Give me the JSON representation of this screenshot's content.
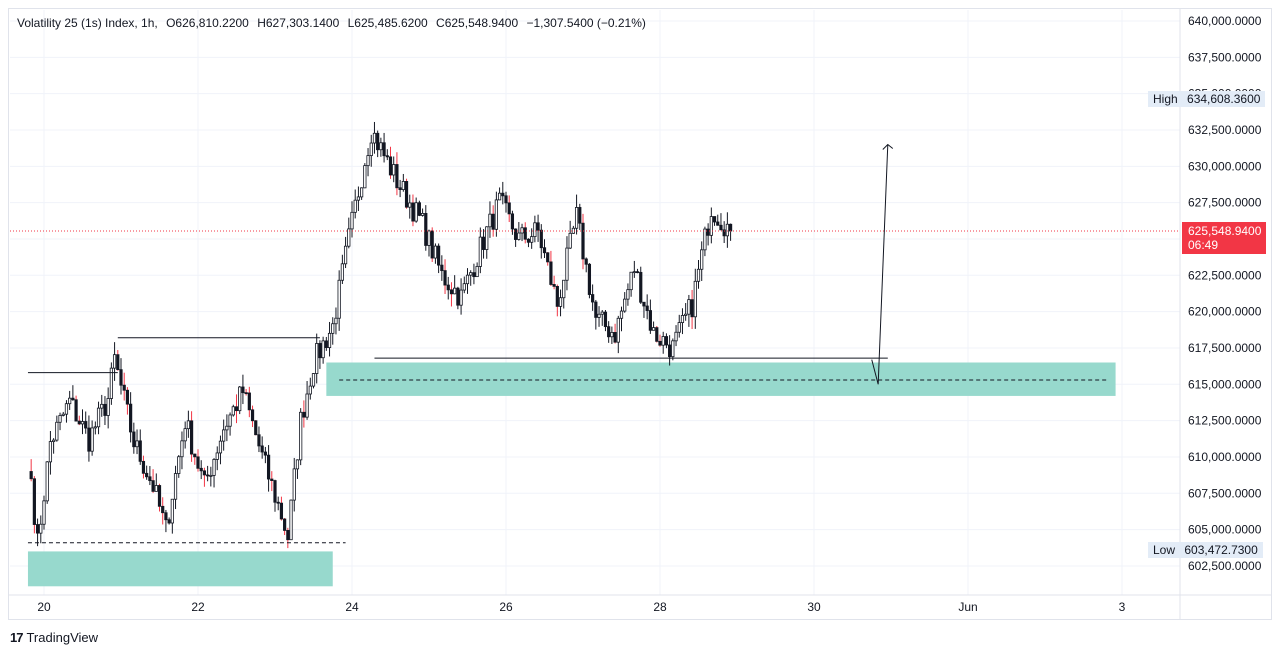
{
  "header": {
    "symbol": "Volatility 25 (1s) Index, 1h,",
    "open": "O626,810.2200",
    "high": "H627,303.1400",
    "low": "L625,485.6200",
    "close": "C625,548.9400",
    "change": "−1,307.5400 (−0.21%)"
  },
  "markers": {
    "high_label": "High",
    "high_value": "634,608.3600",
    "low_label": "Low",
    "low_value": "603,472.7300",
    "last_price": "625,548.9400",
    "countdown": "06:49"
  },
  "brand": {
    "name": "TradingView",
    "logo": "tradingview-logo-icon"
  },
  "colors": {
    "up": "#131722",
    "down": "#131722",
    "up_body": "#ffffff",
    "last_price": "#f23645",
    "zone_fill": "#97d9cd",
    "accent_wick": "#f23645"
  },
  "chart_data": {
    "type": "candlestick",
    "title": "Volatility 25 (1s) Index, 1h",
    "x_ticks": [
      "20",
      "22",
      "24",
      "26",
      "28",
      "30",
      "Jun",
      "3"
    ],
    "y_ticks": [
      "640,000.0000",
      "637,500.0000",
      "635,000.0000",
      "632,500.0000",
      "630,000.0000",
      "627,500.0000",
      "625,000.0000",
      "622,500.0000",
      "620,000.0000",
      "617,500.0000",
      "615,000.0000",
      "612,500.0000",
      "610,000.0000",
      "607,500.0000",
      "605,000.0000",
      "602,500.0000"
    ],
    "ylim": [
      601000,
      641000
    ],
    "x_range": [
      "May 19 19:00",
      "Jun 4 06:00"
    ],
    "anchor_closes": [
      {
        "t": "May 19 20:00",
        "v": 608500
      },
      {
        "t": "May 19 22:00",
        "v": 604000
      },
      {
        "t": "May 20 02:00",
        "v": 611000
      },
      {
        "t": "May 20 08:00",
        "v": 613800
      },
      {
        "t": "May 20 14:00",
        "v": 611200
      },
      {
        "t": "May 20 20:00",
        "v": 614000
      },
      {
        "t": "May 20 22:00",
        "v": 616700
      },
      {
        "t": "May 21 04:00",
        "v": 611000
      },
      {
        "t": "May 21 10:00",
        "v": 608000
      },
      {
        "t": "May 21 14:00",
        "v": 605000
      },
      {
        "t": "May 21 20:00",
        "v": 612500
      },
      {
        "t": "May 22 02:00",
        "v": 608000
      },
      {
        "t": "May 22 08:00",
        "v": 612000
      },
      {
        "t": "May 22 14:00",
        "v": 614500
      },
      {
        "t": "May 22 20:00",
        "v": 610000
      },
      {
        "t": "May 23 02:00",
        "v": 606000
      },
      {
        "t": "May 23 04:00",
        "v": 604500
      },
      {
        "t": "May 23 08:00",
        "v": 612500
      },
      {
        "t": "May 23 12:00",
        "v": 616500
      },
      {
        "t": "May 23 18:00",
        "v": 619000
      },
      {
        "t": "May 23 23:00",
        "v": 625000
      },
      {
        "t": "May 24 04:00",
        "v": 630500
      },
      {
        "t": "May 24 06:00",
        "v": 632500
      },
      {
        "t": "May 24 14:00",
        "v": 629000
      },
      {
        "t": "May 24 22:00",
        "v": 626000
      },
      {
        "t": "May 25 04:00",
        "v": 622500
      },
      {
        "t": "May 25 10:00",
        "v": 621000
      },
      {
        "t": "May 25 18:00",
        "v": 625500
      },
      {
        "t": "May 25 22:00",
        "v": 627500
      },
      {
        "t": "May 26 04:00",
        "v": 625000
      },
      {
        "t": "May 26 10:00",
        "v": 625500
      },
      {
        "t": "May 26 16:00",
        "v": 620500
      },
      {
        "t": "May 26 22:00",
        "v": 626500
      },
      {
        "t": "May 27 04:00",
        "v": 619500
      },
      {
        "t": "May 27 10:00",
        "v": 618500
      },
      {
        "t": "May 27 16:00",
        "v": 623000
      },
      {
        "t": "May 27 22:00",
        "v": 618500
      },
      {
        "t": "May 28 04:00",
        "v": 617500
      },
      {
        "t": "May 28 10:00",
        "v": 620500
      },
      {
        "t": "May 28 16:00",
        "v": 627200
      },
      {
        "t": "May 28 22:00",
        "v": 625549
      }
    ],
    "lines": [
      {
        "kind": "solid",
        "value": 615800,
        "from": "May 19 19:00",
        "to": "May 20 23:00"
      },
      {
        "kind": "solid",
        "value": 618200,
        "from": "May 20 23:00",
        "to": "May 23 14:00"
      },
      {
        "kind": "solid",
        "value": 616800,
        "from": "May 24 07:00",
        "to": "May 30 23:00"
      },
      {
        "kind": "dashed",
        "value": 604100,
        "from": "May 19 19:00",
        "to": "May 23 22:00"
      },
      {
        "kind": "dashed",
        "value": 615300,
        "from": "May 23 20:00",
        "to": "Jun 2 20:00"
      }
    ],
    "zones": [
      {
        "from_value": 601100,
        "to_value": 603500,
        "from": "May 19 19:00",
        "to": "May 23 18:00"
      },
      {
        "from_value": 614200,
        "to_value": 616500,
        "from": "May 23 16:00",
        "to": "Jun 2 22:00"
      }
    ],
    "projection_arrow": [
      {
        "t": "May 30 18:00",
        "v": 616700
      },
      {
        "t": "May 30 20:00",
        "v": 615000
      },
      {
        "t": "May 30 23:00",
        "v": 631500
      }
    ],
    "last_price": 625548.94
  }
}
